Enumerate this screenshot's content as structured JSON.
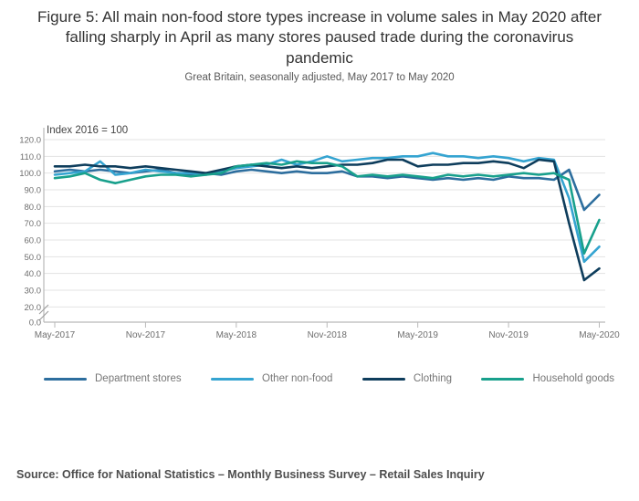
{
  "page": {
    "title": "Figure 5: All main non-food store types increase in volume sales in May 2020 after falling sharply in April as many stores paused trade during the coronavirus pandemic",
    "subtitle": "Great Britain, seasonally adjusted, May 2017 to May 2020",
    "source": "Source: Office for National Statistics – Monthly Business Survey – Retail Sales Inquiry"
  },
  "chart_data": {
    "type": "line",
    "title": "Figure 5: All main non-food store types increase in volume sales in May 2020 after falling sharply in April as many stores paused trade during the coronavirus pandemic",
    "subtitle": "Great Britain, seasonally adjusted, May 2017 to May 2020",
    "index_label": "Index 2016 = 100",
    "grid": "horizontal",
    "legend_position": "bottom",
    "axis_break_between_0_and_20": true,
    "ylim_display": [
      20,
      120
    ],
    "y_ticks": [
      120,
      110,
      100,
      90,
      80,
      70,
      60,
      50,
      40,
      30,
      20,
      0
    ],
    "x": [
      "May-2017",
      "Jun-2017",
      "Jul-2017",
      "Aug-2017",
      "Sep-2017",
      "Oct-2017",
      "Nov-2017",
      "Dec-2017",
      "Jan-2018",
      "Feb-2018",
      "Mar-2018",
      "Apr-2018",
      "May-2018",
      "Jun-2018",
      "Jul-2018",
      "Aug-2018",
      "Sep-2018",
      "Oct-2018",
      "Nov-2018",
      "Dec-2018",
      "Jan-2019",
      "Feb-2019",
      "Mar-2019",
      "Apr-2019",
      "May-2019",
      "Jun-2019",
      "Jul-2019",
      "Aug-2019",
      "Sep-2019",
      "Oct-2019",
      "Nov-2019",
      "Dec-2019",
      "Jan-2020",
      "Feb-2020",
      "Mar-2020",
      "Apr-2020",
      "May-2020"
    ],
    "x_tick_labels": [
      "May-2017",
      "Nov-2017",
      "May-2018",
      "Nov-2018",
      "May-2019",
      "Nov-2019",
      "May-2020"
    ],
    "series": [
      {
        "name": "Department stores",
        "color": "#2d6e9e",
        "values": [
          101,
          102,
          101,
          102,
          101,
          100,
          101,
          102,
          100,
          99,
          100,
          99,
          101,
          102,
          101,
          100,
          101,
          100,
          100,
          101,
          98,
          98,
          97,
          98,
          97,
          96,
          97,
          96,
          97,
          96,
          98,
          97,
          97,
          96,
          102,
          78,
          87
        ]
      },
      {
        "name": "Other non-food",
        "color": "#35a4d1",
        "values": [
          99,
          100,
          101,
          107,
          99,
          100,
          102,
          101,
          100,
          100,
          99,
          101,
          103,
          104,
          105,
          108,
          105,
          107,
          110,
          107,
          108,
          109,
          109,
          110,
          110,
          112,
          110,
          110,
          109,
          110,
          109,
          107,
          109,
          108,
          85,
          47,
          56
        ]
      },
      {
        "name": "Clothing",
        "color": "#0e3d5c",
        "values": [
          104,
          104,
          105,
          104,
          104,
          103,
          104,
          103,
          102,
          101,
          100,
          102,
          104,
          105,
          104,
          103,
          104,
          103,
          104,
          105,
          105,
          106,
          108,
          108,
          104,
          105,
          105,
          106,
          106,
          107,
          106,
          103,
          108,
          107,
          70,
          36,
          43
        ]
      },
      {
        "name": "Household goods",
        "color": "#18a08c",
        "values": [
          97,
          98,
          100,
          96,
          94,
          96,
          98,
          99,
          99,
          98,
          99,
          100,
          104,
          105,
          106,
          105,
          107,
          106,
          106,
          104,
          98,
          99,
          98,
          99,
          98,
          97,
          99,
          98,
          99,
          98,
          99,
          100,
          99,
          100,
          96,
          52,
          72
        ]
      }
    ],
    "colors": {
      "gridline": "#e3e3e3",
      "axis": "#b9b9b9",
      "tick_text": "#6e6e6e",
      "index_label_text": "#444444"
    }
  }
}
